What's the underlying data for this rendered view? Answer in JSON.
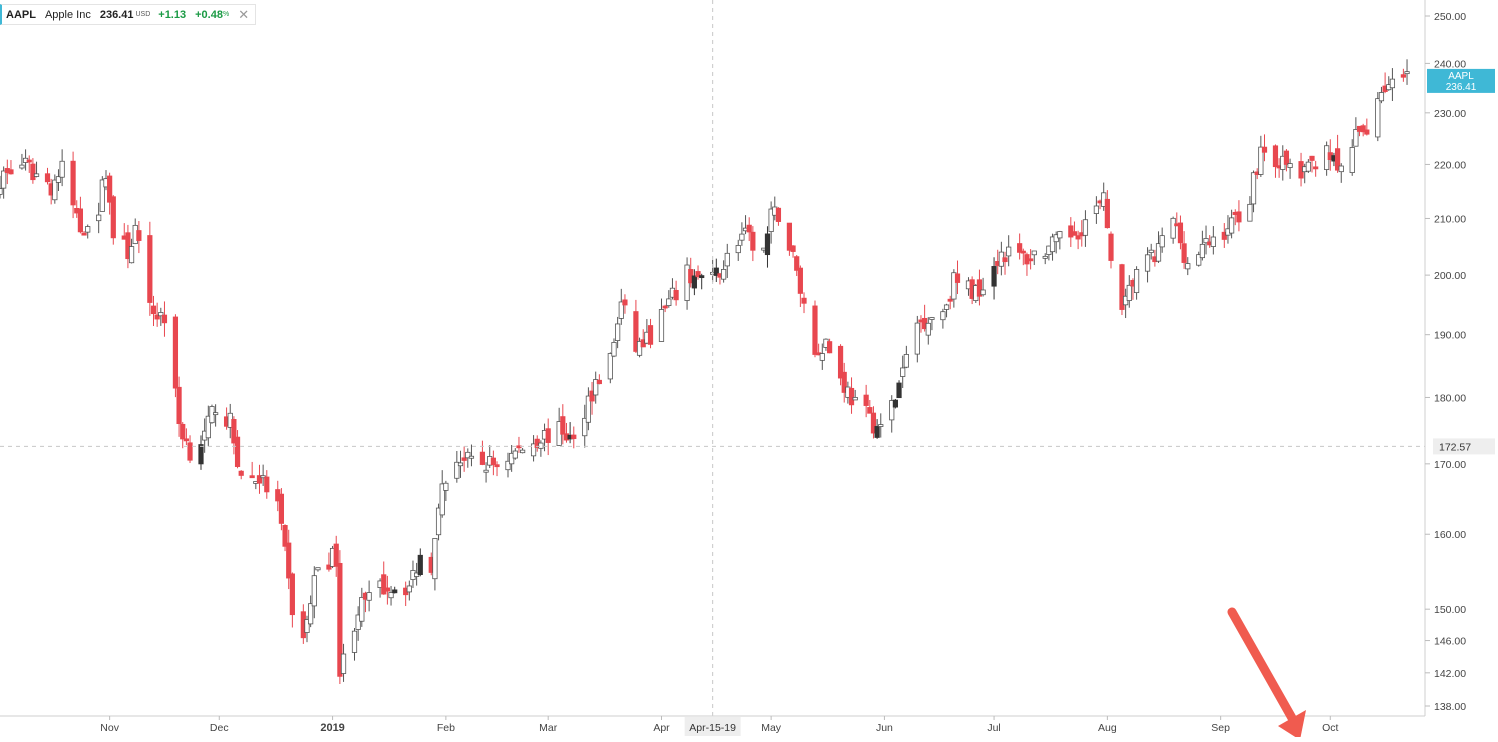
{
  "legend": {
    "symbol": "AAPL",
    "name": "Apple Inc",
    "last": "236.41",
    "currency": "USD",
    "change": "+1.13",
    "change_pct": "+0.48",
    "pct_sign": "%",
    "close_glyph": "✕"
  },
  "colors": {
    "up": "#ffffff",
    "up_stroke": "#555555",
    "down": "#e8474f",
    "neutral": "#333333",
    "price_tag": "#3fb8d6",
    "crosshair_tag": "#eeeeee",
    "arrow": "#f05b4f"
  },
  "crosshair": {
    "date_label": "Apr-15-19",
    "price_label": "172.57",
    "price": 172.57
  },
  "price_tag": {
    "symbol": "AAPL",
    "value": "236.41",
    "price": 236.41
  },
  "chart_data": {
    "type": "candlestick",
    "title": "",
    "xlabel": "",
    "ylabel": "",
    "y_scale": "log",
    "ylim": [
      136,
      254
    ],
    "grid": false,
    "y_ticks": [
      "250.00",
      "240.00",
      "230.00",
      "220.00",
      "210.00",
      "200.00",
      "190.00",
      "180.00",
      "170.00",
      "160.00",
      "150.00",
      "146.00",
      "142.00",
      "138.00"
    ],
    "x_ticks": [
      {
        "label": "Nov",
        "date": "2018-11-01"
      },
      {
        "label": "Dec",
        "date": "2018-12-01"
      },
      {
        "label": "2019",
        "date": "2019-01-01"
      },
      {
        "label": "Feb",
        "date": "2019-02-01"
      },
      {
        "label": "Mar",
        "date": "2019-03-01"
      },
      {
        "label": "Apr",
        "date": "2019-04-01"
      },
      {
        "label": "May",
        "date": "2019-05-01"
      },
      {
        "label": "Jun",
        "date": "2019-06-01"
      },
      {
        "label": "Jul",
        "date": "2019-07-01"
      },
      {
        "label": "Aug",
        "date": "2019-08-01"
      },
      {
        "label": "Sep",
        "date": "2019-09-01"
      },
      {
        "label": "Oct",
        "date": "2019-10-01"
      }
    ],
    "x_range": [
      "2018-10-02",
      "2019-10-25"
    ],
    "waypoints": [
      [
        "2018-10-01",
        217
      ],
      [
        "2018-10-08",
        220
      ],
      [
        "2018-10-12",
        218
      ],
      [
        "2018-10-16",
        216
      ],
      [
        "2018-10-19",
        219
      ],
      [
        "2018-10-24",
        208
      ],
      [
        "2018-10-29",
        212
      ],
      [
        "2018-10-31",
        219
      ],
      [
        "2018-11-02",
        207
      ],
      [
        "2018-11-06",
        204
      ],
      [
        "2018-11-08",
        208
      ],
      [
        "2018-11-12",
        194
      ],
      [
        "2018-11-16",
        193
      ],
      [
        "2018-11-20",
        176
      ],
      [
        "2018-11-23",
        172
      ],
      [
        "2018-11-27",
        174
      ],
      [
        "2018-11-30",
        179
      ],
      [
        "2018-12-04",
        176
      ],
      [
        "2018-12-07",
        168
      ],
      [
        "2018-12-12",
        168
      ],
      [
        "2018-12-17",
        164
      ],
      [
        "2018-12-21",
        150
      ],
      [
        "2018-12-24",
        146
      ],
      [
        "2018-12-28",
        156
      ],
      [
        "2019-01-02",
        157
      ],
      [
        "2019-01-03",
        142
      ],
      [
        "2019-01-08",
        150
      ],
      [
        "2019-01-15",
        153
      ],
      [
        "2019-01-22",
        153
      ],
      [
        "2019-01-25",
        157
      ],
      [
        "2019-01-28",
        156
      ],
      [
        "2019-01-30",
        165
      ],
      [
        "2019-02-04",
        171
      ],
      [
        "2019-02-08",
        170
      ],
      [
        "2019-02-15",
        170
      ],
      [
        "2019-02-21",
        172
      ],
      [
        "2019-02-27",
        174
      ],
      [
        "2019-03-05",
        175
      ],
      [
        "2019-03-08",
        173
      ],
      [
        "2019-03-12",
        180
      ],
      [
        "2019-03-18",
        186
      ],
      [
        "2019-03-21",
        195
      ],
      [
        "2019-03-25",
        188
      ],
      [
        "2019-03-28",
        189
      ],
      [
        "2019-04-03",
        195
      ],
      [
        "2019-04-08",
        200
      ],
      [
        "2019-04-15",
        199
      ],
      [
        "2019-04-23",
        207
      ],
      [
        "2019-04-29",
        204
      ],
      [
        "2019-05-01",
        210
      ],
      [
        "2019-05-03",
        211
      ],
      [
        "2019-05-07",
        203
      ],
      [
        "2019-05-13",
        187
      ],
      [
        "2019-05-16",
        189
      ],
      [
        "2019-05-20",
        183
      ],
      [
        "2019-05-24",
        179
      ],
      [
        "2019-05-31",
        175
      ],
      [
        "2019-06-04",
        180
      ],
      [
        "2019-06-10",
        192
      ],
      [
        "2019-06-17",
        194
      ],
      [
        "2019-06-20",
        199
      ],
      [
        "2019-06-26",
        197
      ],
      [
        "2019-07-03",
        204
      ],
      [
        "2019-07-10",
        203
      ],
      [
        "2019-07-17",
        205
      ],
      [
        "2019-07-24",
        208
      ],
      [
        "2019-07-31",
        213
      ],
      [
        "2019-08-02",
        204
      ],
      [
        "2019-08-05",
        193
      ],
      [
        "2019-08-09",
        201
      ],
      [
        "2019-08-14",
        203
      ],
      [
        "2019-08-19",
        210
      ],
      [
        "2019-08-23",
        202
      ],
      [
        "2019-08-28",
        205
      ],
      [
        "2019-09-04",
        209
      ],
      [
        "2019-09-09",
        214
      ],
      [
        "2019-09-12",
        223
      ],
      [
        "2019-09-18",
        220
      ],
      [
        "2019-09-24",
        218
      ],
      [
        "2019-09-30",
        224
      ],
      [
        "2019-10-03",
        218
      ],
      [
        "2019-10-08",
        225
      ],
      [
        "2019-10-11",
        227
      ],
      [
        "2019-10-15",
        235
      ],
      [
        "2019-10-22",
        236.41
      ]
    ]
  }
}
